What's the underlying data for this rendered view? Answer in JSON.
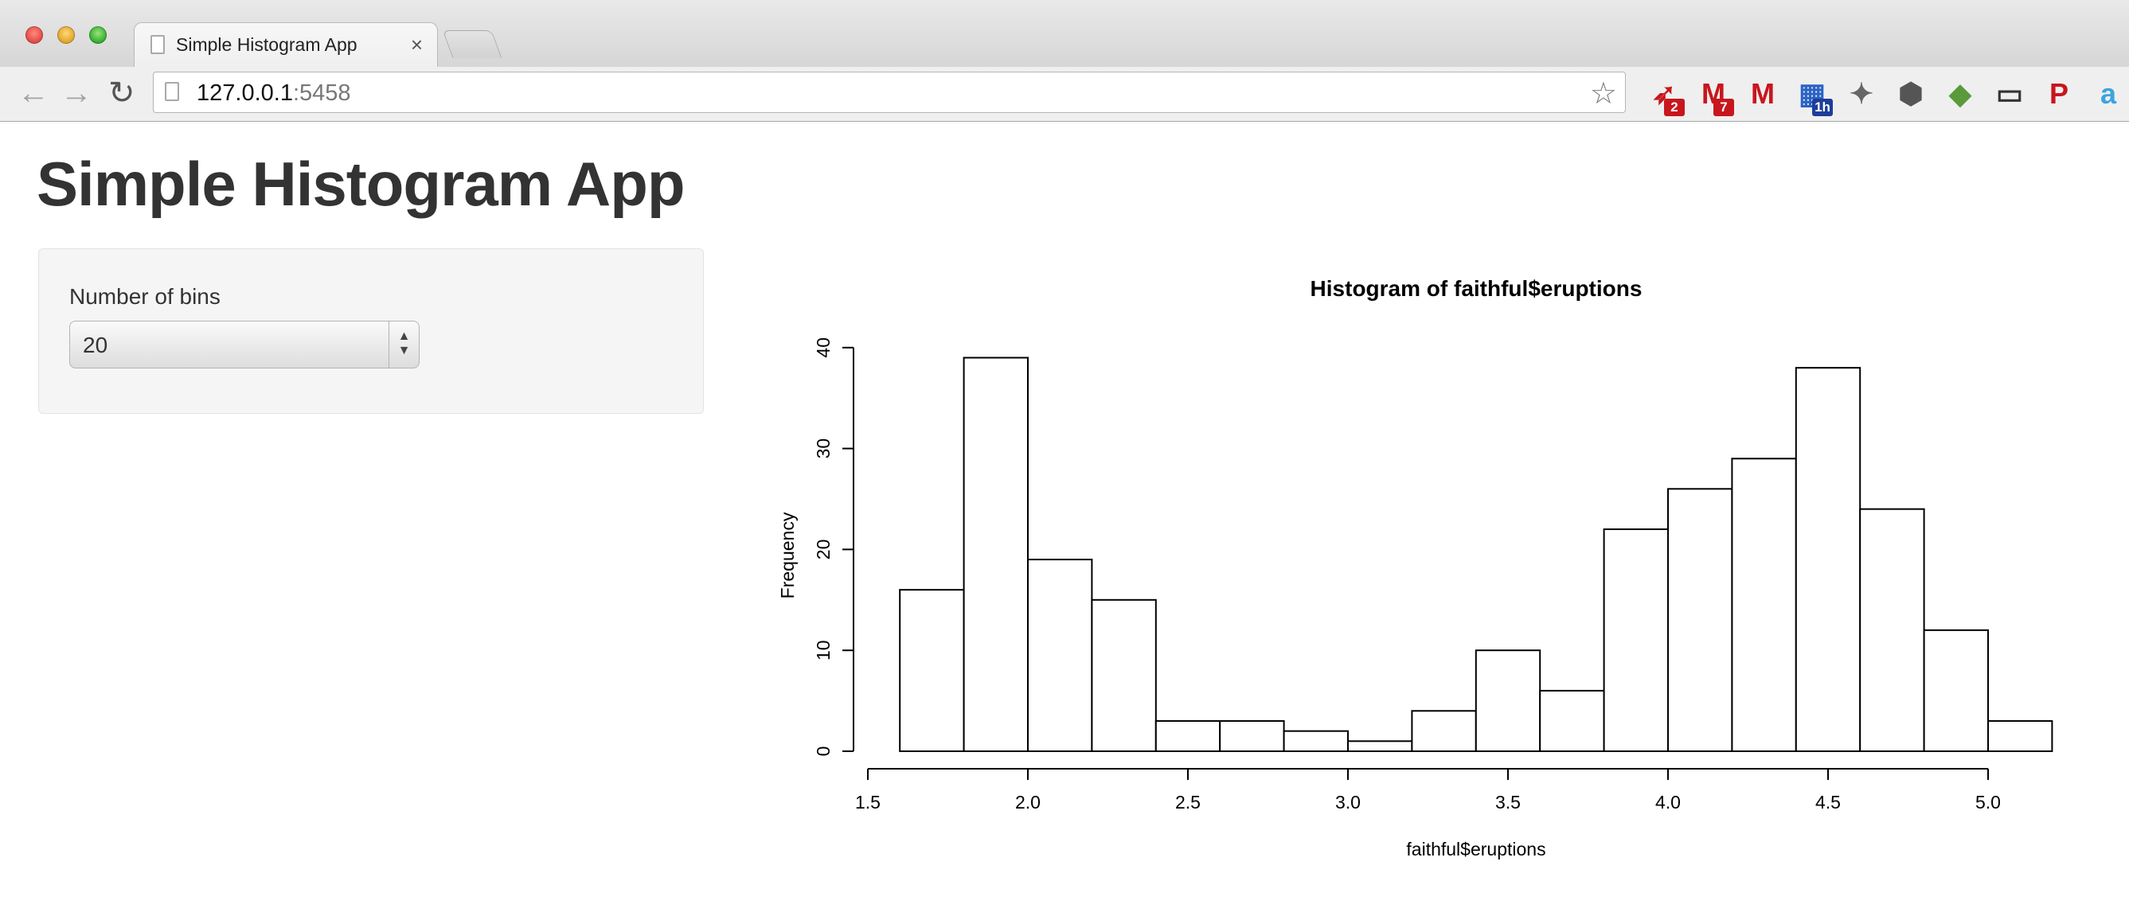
{
  "browser": {
    "tab_title": "Simple Histogram App",
    "tab_close": "×",
    "url_host": "127.0.0.1",
    "url_port": ":5458",
    "extensions": [
      {
        "name": "bird-icon",
        "badge": "2"
      },
      {
        "name": "gmail-icon",
        "badge": "7"
      },
      {
        "name": "gmail-send-icon",
        "badge": ""
      },
      {
        "name": "calendar-icon",
        "badge": "1h"
      },
      {
        "name": "tools-icon",
        "badge": ""
      },
      {
        "name": "hexagon-icon",
        "badge": ""
      },
      {
        "name": "evernote-icon",
        "badge": ""
      },
      {
        "name": "cast-icon",
        "badge": ""
      },
      {
        "name": "pinterest-icon",
        "badge": ""
      },
      {
        "name": "a-icon",
        "badge": ""
      }
    ]
  },
  "page": {
    "title": "Simple Histogram App",
    "bins_label": "Number of bins",
    "bins_value": "20"
  },
  "chart_data": {
    "type": "bar",
    "title": "Histogram of faithful$eruptions",
    "xlabel": "faithful$eruptions",
    "ylabel": "Frequency",
    "bin_edges": [
      1.6,
      1.8,
      2.0,
      2.2,
      2.4,
      2.6,
      2.8,
      3.0,
      3.2,
      3.4,
      3.6,
      3.8,
      4.0,
      4.2,
      4.4,
      4.6,
      4.8,
      5.0,
      5.2
    ],
    "values": [
      16,
      39,
      19,
      15,
      3,
      3,
      2,
      1,
      4,
      10,
      6,
      22,
      26,
      29,
      38,
      24,
      12,
      3
    ],
    "xlim": [
      1.5,
      5.0
    ],
    "ylim": [
      0,
      40
    ],
    "xticks": [
      1.5,
      2.0,
      2.5,
      3.0,
      3.5,
      4.0,
      4.5,
      5.0
    ],
    "xtick_labels": [
      "1.5",
      "2.0",
      "2.5",
      "3.0",
      "3.5",
      "4.0",
      "4.5",
      "5.0"
    ],
    "yticks": [
      0,
      10,
      20,
      30,
      40
    ],
    "ytick_labels": [
      "0",
      "10",
      "20",
      "30",
      "40"
    ]
  }
}
